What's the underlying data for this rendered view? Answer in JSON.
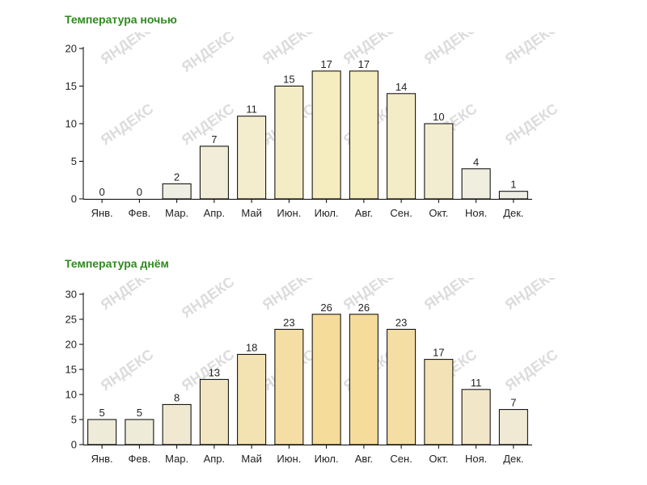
{
  "chart_data": [
    {
      "type": "bar",
      "title": "Температура ночью",
      "categories": [
        "Янв.",
        "Фев.",
        "Мар.",
        "Апр.",
        "Май",
        "Июн.",
        "Июл.",
        "Авг.",
        "Сен.",
        "Окт.",
        "Ноя.",
        "Дек."
      ],
      "values": [
        0,
        0,
        2,
        7,
        11,
        15,
        17,
        17,
        14,
        10,
        4,
        1
      ],
      "ylim": [
        0,
        20
      ],
      "yticks": [
        0,
        5,
        10,
        15,
        20
      ],
      "grid": false,
      "bar_color_low": "#eeeee8",
      "bar_color_high": "#f5ecc0"
    },
    {
      "type": "bar",
      "title": "Температура днём",
      "categories": [
        "Янв.",
        "Фев.",
        "Мар.",
        "Апр.",
        "Май",
        "Июн.",
        "Июл.",
        "Авг.",
        "Сен.",
        "Окт.",
        "Ноя.",
        "Дек."
      ],
      "values": [
        5,
        5,
        8,
        13,
        18,
        23,
        26,
        26,
        23,
        17,
        11,
        7
      ],
      "ylim": [
        0,
        30
      ],
      "yticks": [
        0,
        5,
        10,
        15,
        20,
        25,
        30
      ],
      "grid": false,
      "bar_color_low": "#eeeee8",
      "bar_color_high": "#f5dc9a"
    }
  ],
  "watermark": "ЯНДЕКС"
}
